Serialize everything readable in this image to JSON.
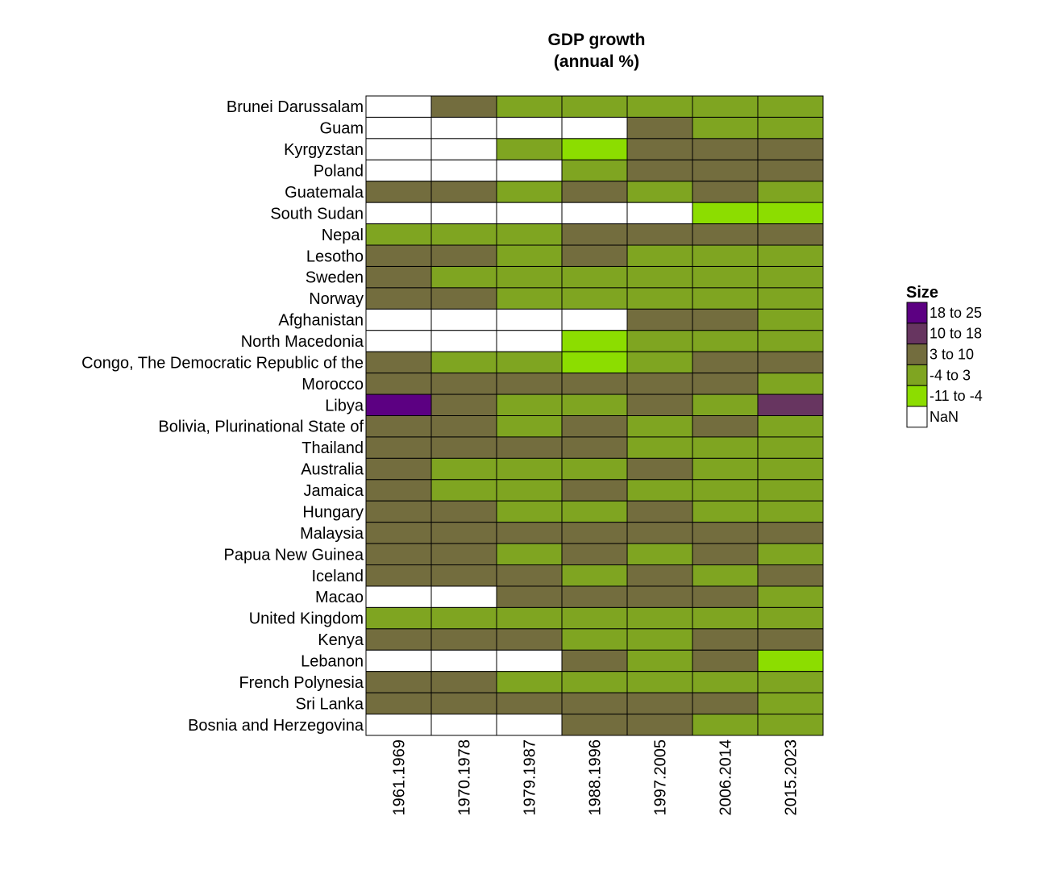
{
  "chart_data": {
    "type": "heatmap",
    "title_lines": [
      "GDP growth",
      "(annual %)"
    ],
    "columns": [
      "1961.1969",
      "1970.1978",
      "1979.1987",
      "1988.1996",
      "1997.2005",
      "2006.2014",
      "2015.2023"
    ],
    "rows": [
      "Brunei Darussalam",
      "Guam",
      "Kyrgyzstan",
      "Poland",
      "Guatemala",
      "South Sudan",
      "Nepal",
      "Lesotho",
      "Sweden",
      "Norway",
      "Afghanistan",
      "North Macedonia",
      "Congo, The Democratic Republic of the",
      "Morocco",
      "Libya",
      "Bolivia, Plurinational State of",
      "Thailand",
      "Australia",
      "Jamaica",
      "Hungary",
      "Malaysia",
      "Papua New Guinea",
      "Iceland",
      "Macao",
      "United Kingdom",
      "Kenya",
      "Lebanon",
      "French Polynesia",
      "Sri Lanka",
      "Bosnia and Herzegovina"
    ],
    "values": [
      [
        "NaN",
        "3 to 10",
        "-4 to 3",
        "-4 to 3",
        "-4 to 3",
        "-4 to 3",
        "-4 to 3"
      ],
      [
        "NaN",
        "NaN",
        "NaN",
        "NaN",
        "3 to 10",
        "-4 to 3",
        "-4 to 3"
      ],
      [
        "NaN",
        "NaN",
        "-4 to 3",
        "-11 to -4",
        "3 to 10",
        "3 to 10",
        "3 to 10"
      ],
      [
        "NaN",
        "NaN",
        "NaN",
        "-4 to 3",
        "3 to 10",
        "3 to 10",
        "3 to 10"
      ],
      [
        "3 to 10",
        "3 to 10",
        "-4 to 3",
        "3 to 10",
        "-4 to 3",
        "3 to 10",
        "-4 to 3"
      ],
      [
        "NaN",
        "NaN",
        "NaN",
        "NaN",
        "NaN",
        "-11 to -4",
        "-11 to -4"
      ],
      [
        "-4 to 3",
        "-4 to 3",
        "-4 to 3",
        "3 to 10",
        "3 to 10",
        "3 to 10",
        "3 to 10"
      ],
      [
        "3 to 10",
        "3 to 10",
        "-4 to 3",
        "3 to 10",
        "-4 to 3",
        "-4 to 3",
        "-4 to 3"
      ],
      [
        "3 to 10",
        "-4 to 3",
        "-4 to 3",
        "-4 to 3",
        "-4 to 3",
        "-4 to 3",
        "-4 to 3"
      ],
      [
        "3 to 10",
        "3 to 10",
        "-4 to 3",
        "-4 to 3",
        "-4 to 3",
        "-4 to 3",
        "-4 to 3"
      ],
      [
        "NaN",
        "NaN",
        "NaN",
        "NaN",
        "3 to 10",
        "3 to 10",
        "-4 to 3"
      ],
      [
        "NaN",
        "NaN",
        "NaN",
        "-11 to -4",
        "-4 to 3",
        "-4 to 3",
        "-4 to 3"
      ],
      [
        "3 to 10",
        "-4 to 3",
        "-4 to 3",
        "-11 to -4",
        "-4 to 3",
        "3 to 10",
        "3 to 10"
      ],
      [
        "3 to 10",
        "3 to 10",
        "3 to 10",
        "3 to 10",
        "3 to 10",
        "3 to 10",
        "-4 to 3"
      ],
      [
        "18 to 25",
        "3 to 10",
        "-4 to 3",
        "-4 to 3",
        "3 to 10",
        "-4 to 3",
        "10 to 18"
      ],
      [
        "3 to 10",
        "3 to 10",
        "-4 to 3",
        "3 to 10",
        "-4 to 3",
        "3 to 10",
        "-4 to 3"
      ],
      [
        "3 to 10",
        "3 to 10",
        "3 to 10",
        "3 to 10",
        "-4 to 3",
        "-4 to 3",
        "-4 to 3"
      ],
      [
        "3 to 10",
        "-4 to 3",
        "-4 to 3",
        "-4 to 3",
        "3 to 10",
        "-4 to 3",
        "-4 to 3"
      ],
      [
        "3 to 10",
        "-4 to 3",
        "-4 to 3",
        "3 to 10",
        "-4 to 3",
        "-4 to 3",
        "-4 to 3"
      ],
      [
        "3 to 10",
        "3 to 10",
        "-4 to 3",
        "-4 to 3",
        "3 to 10",
        "-4 to 3",
        "-4 to 3"
      ],
      [
        "3 to 10",
        "3 to 10",
        "3 to 10",
        "3 to 10",
        "3 to 10",
        "3 to 10",
        "3 to 10"
      ],
      [
        "3 to 10",
        "3 to 10",
        "-4 to 3",
        "3 to 10",
        "-4 to 3",
        "3 to 10",
        "-4 to 3"
      ],
      [
        "3 to 10",
        "3 to 10",
        "3 to 10",
        "-4 to 3",
        "3 to 10",
        "-4 to 3",
        "3 to 10"
      ],
      [
        "NaN",
        "NaN",
        "3 to 10",
        "3 to 10",
        "3 to 10",
        "3 to 10",
        "-4 to 3"
      ],
      [
        "-4 to 3",
        "-4 to 3",
        "-4 to 3",
        "-4 to 3",
        "-4 to 3",
        "-4 to 3",
        "-4 to 3"
      ],
      [
        "3 to 10",
        "3 to 10",
        "3 to 10",
        "-4 to 3",
        "-4 to 3",
        "3 to 10",
        "3 to 10"
      ],
      [
        "NaN",
        "NaN",
        "NaN",
        "3 to 10",
        "-4 to 3",
        "3 to 10",
        "-11 to -4"
      ],
      [
        "3 to 10",
        "3 to 10",
        "-4 to 3",
        "-4 to 3",
        "-4 to 3",
        "-4 to 3",
        "-4 to 3"
      ],
      [
        "3 to 10",
        "3 to 10",
        "3 to 10",
        "3 to 10",
        "3 to 10",
        "3 to 10",
        "-4 to 3"
      ],
      [
        "NaN",
        "NaN",
        "NaN",
        "3 to 10",
        "3 to 10",
        "-4 to 3",
        "-4 to 3"
      ]
    ],
    "legend": {
      "title": "Size",
      "position": "right",
      "items": [
        {
          "label": "18 to 25",
          "color": "#5c0082"
        },
        {
          "label": "10 to 18",
          "color": "#673560"
        },
        {
          "label": "3 to 10",
          "color": "#736d3e"
        },
        {
          "label": "-4 to 3",
          "color": "#7fa521"
        },
        {
          "label": "-11 to -4",
          "color": "#8cdd00"
        },
        {
          "label": "NaN",
          "color": "#ffffff"
        }
      ]
    }
  }
}
